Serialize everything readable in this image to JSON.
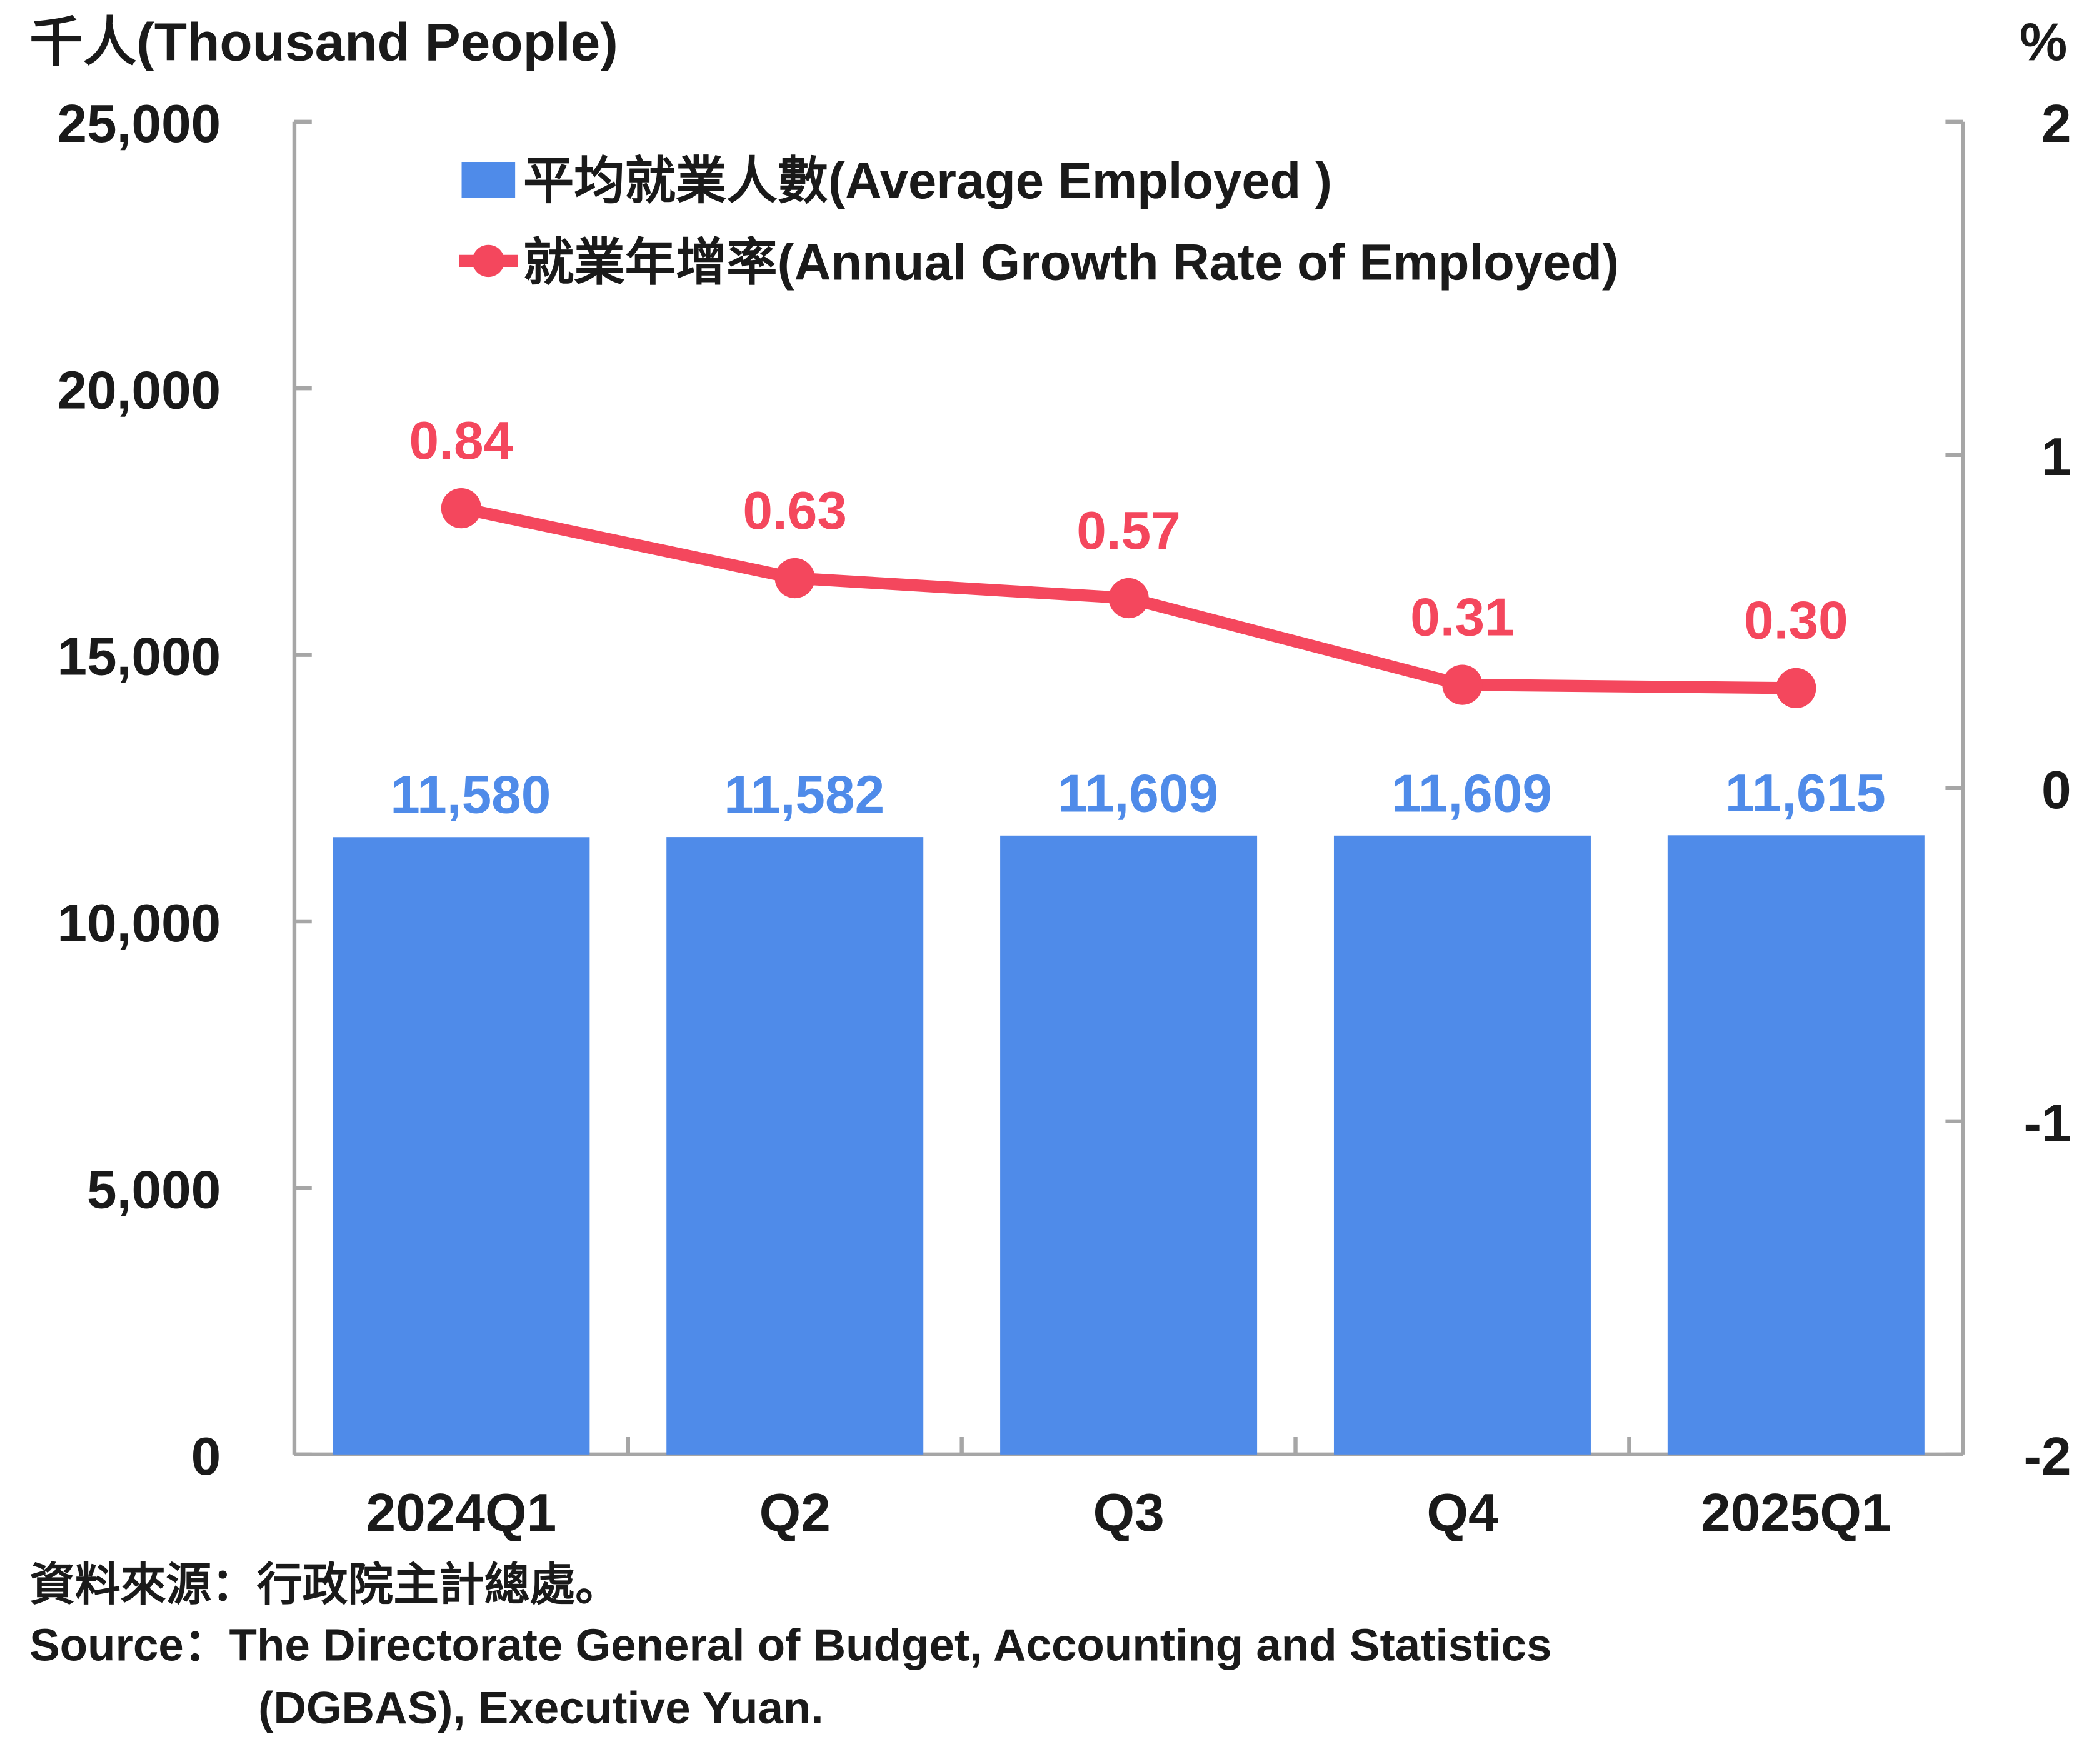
{
  "chart_data": {
    "type": "bar",
    "categories": [
      "2024Q1",
      "Q2",
      "Q3",
      "Q4",
      "2025Q1"
    ],
    "series": [
      {
        "name": "平均就業人數(Average Employed )",
        "type": "bar",
        "axis": "left",
        "color": "#4f8be9",
        "values": [
          11580,
          11582,
          11609,
          11609,
          11615
        ],
        "labels": [
          "11,580",
          "11,582",
          "11,609",
          "11,609",
          "11,615"
        ]
      },
      {
        "name": "就業年增率(Annual Growth Rate of Employed)",
        "type": "line",
        "axis": "right",
        "color": "#f4475d",
        "values": [
          0.84,
          0.63,
          0.57,
          0.31,
          0.3
        ],
        "labels": [
          "0.84",
          "0.63",
          "0.57",
          "0.31",
          "0.30"
        ]
      }
    ],
    "y_left": {
      "unit_label": "千人(Thousand People)",
      "ylim": [
        0,
        25000
      ],
      "ticks": [
        0,
        5000,
        10000,
        15000,
        20000,
        25000
      ],
      "tick_labels": [
        "0",
        "5,000",
        "10,000",
        "15,000",
        "20,000",
        "25,000"
      ]
    },
    "y_right": {
      "unit_label": "%",
      "ylim": [
        -2,
        2
      ],
      "ticks": [
        -2,
        -1,
        0,
        1,
        2
      ],
      "tick_labels": [
        "-2",
        "-1",
        "0",
        "1",
        "2"
      ]
    },
    "legend": {
      "placement": "top-center"
    },
    "grid": false,
    "axis_color": "#a6a6a6"
  },
  "source": {
    "line_zh": "資料來源：行政院主計總處。",
    "line_en_1": "Source：The Directorate General of Budget, Accounting and Statistics",
    "line_en_2": "(DGBAS), Executive Yuan."
  }
}
